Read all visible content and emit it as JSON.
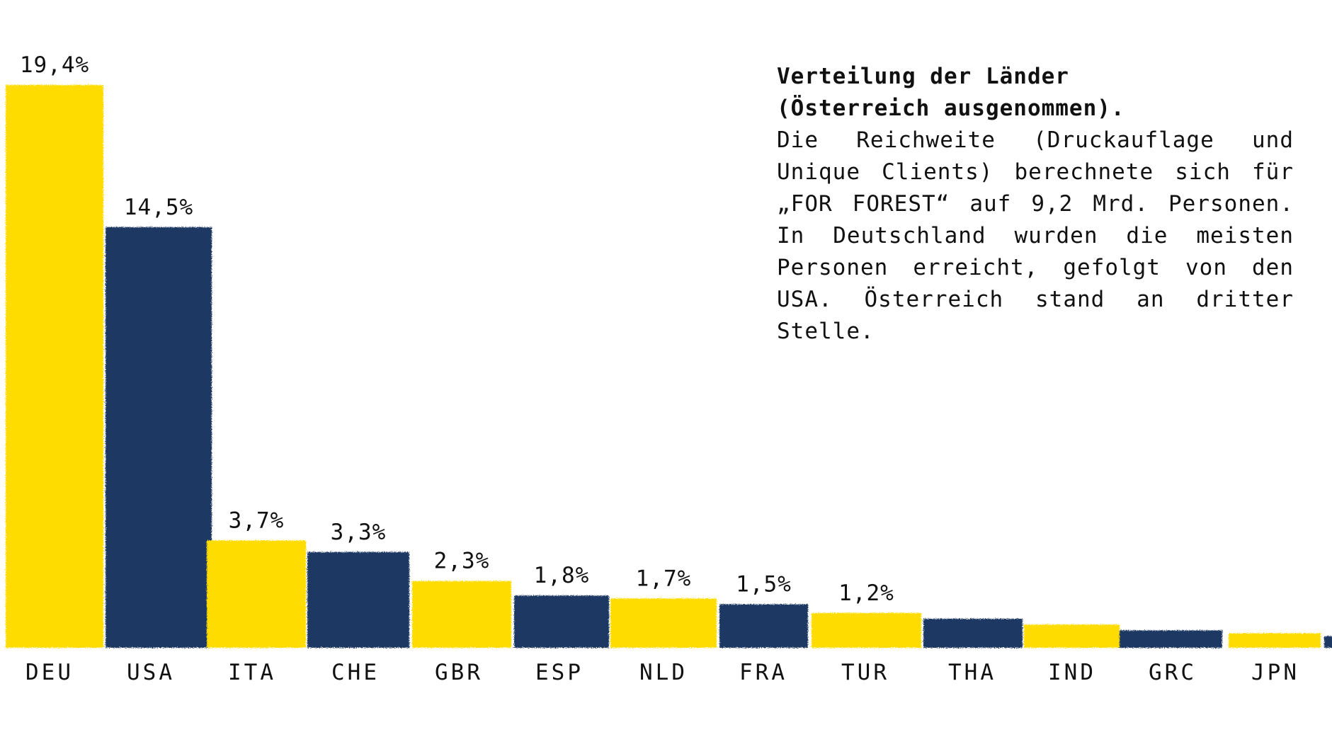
{
  "colors": {
    "yellow": "#FFDC00",
    "navy": "#1F3864",
    "text": "#111111",
    "background": "#FFFFFF"
  },
  "info": {
    "title_line1": "Verteilung der Länder",
    "title_line2": "(Österreich ausgenommen).",
    "body": "Die Reichweite (Druckauflage und Unique Clients) berechnete sich für „FOR FOREST“ auf 9,2 Mrd. Personen. In Deutschland wurden die meisten Personen erreicht, gefolgt von den USA. Österreich stand an dritter Stelle."
  },
  "chart_data": {
    "type": "bar",
    "title": "",
    "xlabel": "",
    "ylabel": "",
    "ylim": [
      0,
      20
    ],
    "grid": false,
    "style": "hand-painted brush strokes, alternating yellow and navy",
    "categories": [
      "DEU",
      "USA",
      "ITA",
      "CHE",
      "GBR",
      "ESP",
      "NLD",
      "FRA",
      "TUR",
      "THA",
      "IND",
      "GRC",
      "JPN",
      ""
    ],
    "values": [
      19.4,
      14.5,
      3.7,
      3.3,
      2.3,
      1.8,
      1.7,
      1.5,
      1.2,
      1.0,
      0.8,
      0.6,
      0.5,
      0.4
    ],
    "value_labels": [
      "19,4%",
      "14,5%",
      "3,7%",
      "3,3%",
      "2,3%",
      "1,8%",
      "1,7%",
      "1,5%",
      "1,2%",
      "",
      "",
      "",
      "",
      ""
    ],
    "bar_colors": [
      "yellow",
      "navy",
      "yellow",
      "navy",
      "yellow",
      "navy",
      "yellow",
      "navy",
      "yellow",
      "navy",
      "yellow",
      "navy",
      "yellow",
      "navy"
    ]
  }
}
